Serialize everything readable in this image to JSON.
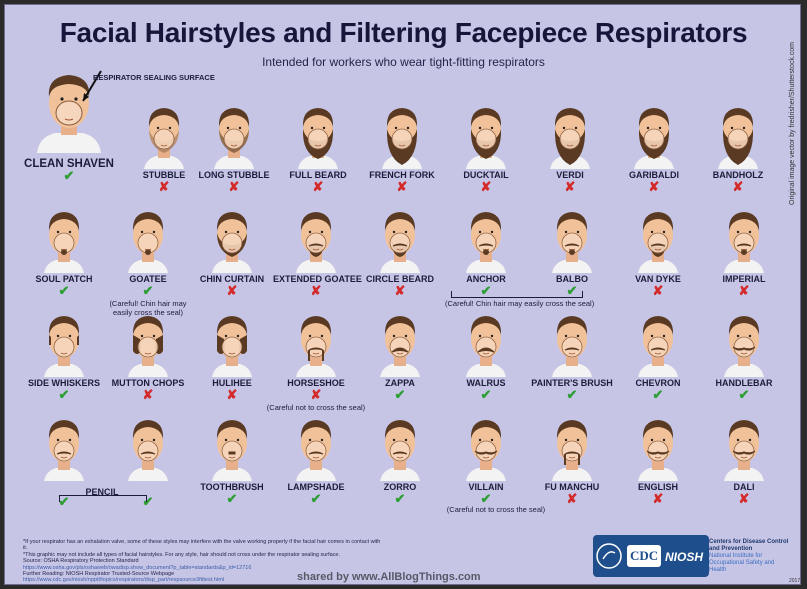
{
  "title": "Facial Hairstyles and Filtering Facepiece Respirators",
  "subtitle": "Intended for workers who wear tight-fitting respirators",
  "sealing_label": "RESPIRATOR SEALING SURFACE",
  "clean_shaven": "CLEAN SHAVEN",
  "colors": {
    "yes": "#2f9e35",
    "no": "#d42a2a",
    "skin": "#f1c29a",
    "hair": "#5a3a22",
    "seal": "#f6d7bd"
  },
  "rows": [
    [
      {
        "label": "STUBBLE",
        "ok": false,
        "style": "stubble"
      },
      {
        "label": "LONG STUBBLE",
        "ok": false,
        "style": "longstubble"
      },
      {
        "label": "FULL BEARD",
        "ok": false,
        "style": "fullbeard"
      },
      {
        "label": "FRENCH FORK",
        "ok": false,
        "style": "frenchfork"
      },
      {
        "label": "DUCKTAIL",
        "ok": false,
        "style": "ducktail"
      },
      {
        "label": "VERDI",
        "ok": false,
        "style": "verdi"
      },
      {
        "label": "GARIBALDI",
        "ok": false,
        "style": "garibaldi"
      },
      {
        "label": "BANDHOLZ",
        "ok": false,
        "style": "bandholz"
      }
    ],
    [
      {
        "label": "SOUL PATCH",
        "ok": true,
        "style": "soulpatch"
      },
      {
        "label": "GOATEE",
        "ok": true,
        "style": "goatee",
        "note": "(Careful! Chin hair may easily cross the seal)"
      },
      {
        "label": "CHIN CURTAIN",
        "ok": false,
        "style": "chincurtain"
      },
      {
        "label": "EXTENDED GOATEE",
        "ok": false,
        "style": "extgoatee"
      },
      {
        "label": "CIRCLE BEARD",
        "ok": false,
        "style": "circlebeard"
      },
      {
        "label": "ANCHOR",
        "ok": true,
        "style": "anchor"
      },
      {
        "label": "BALBO",
        "ok": true,
        "style": "balbo"
      },
      {
        "label": "VAN DYKE",
        "ok": false,
        "style": "vandyke"
      },
      {
        "label": "IMPERIAL",
        "ok": false,
        "style": "imperial"
      }
    ],
    [
      {
        "label": "SIDE WHISKERS",
        "ok": true,
        "style": "sidewhiskers"
      },
      {
        "label": "MUTTON CHOPS",
        "ok": false,
        "style": "muttonchops"
      },
      {
        "label": "HULIHEE",
        "ok": false,
        "style": "hulihee"
      },
      {
        "label": "HORSESHOE",
        "ok": false,
        "style": "horseshoe",
        "note": "(Careful not to cross the seal)"
      },
      {
        "label": "ZAPPA",
        "ok": true,
        "style": "zappa"
      },
      {
        "label": "WALRUS",
        "ok": true,
        "style": "walrus"
      },
      {
        "label": "PAINTER'S BRUSH",
        "ok": true,
        "style": "painters"
      },
      {
        "label": "CHEVRON",
        "ok": true,
        "style": "chevron"
      },
      {
        "label": "HANDLEBAR",
        "ok": true,
        "style": "handlebar"
      }
    ],
    [
      {
        "label": "",
        "ok": true,
        "style": "pencil"
      },
      {
        "label": "",
        "ok": true,
        "style": "pencil2"
      },
      {
        "label": "TOOTHBRUSH",
        "ok": true,
        "style": "toothbrush"
      },
      {
        "label": "LAMPSHADE",
        "ok": true,
        "style": "lampshade"
      },
      {
        "label": "ZORRO",
        "ok": true,
        "style": "zorro"
      },
      {
        "label": "VILLAIN",
        "ok": true,
        "style": "villain"
      },
      {
        "label": "FU MANCHU",
        "ok": false,
        "style": "fumanchu"
      },
      {
        "label": "ENGLISH",
        "ok": false,
        "style": "english"
      },
      {
        "label": "DALI",
        "ok": false,
        "style": "dali"
      }
    ]
  ],
  "anchor_balbo_note": "(Careful! Chin hair may easily cross the seal)",
  "pencil_label": "PENCIL",
  "villain_note": "(Careful not to cross the seal)",
  "footer": {
    "line1": "*If your respirator has an exhalation valve, some of these styles may interfere with the valve working properly if the facial hair comes in contact with it.",
    "line2": "*This graphic may not include all types of facial hairstyles. For any style, hair should not cross under the respirator sealing surface.",
    "line3": "Source: OSHA Respiratory Protection Standard",
    "link1": "https://www.osha.gov/pls/oshaweb/owadisp.show_document?p_table=standards&p_id=12716",
    "line4": "Further Reading: NIOSH Respirator Trusted-Source Webpage",
    "link2": "https://www.cdc.gov/niosh/npptl/topics/respirators/disp_part/respsource3fittest.html"
  },
  "watermark": "shared by www.AllBlogThings.com",
  "cdc": "CDC",
  "niosh": "NIOSH",
  "cdc_text1": "Centers for Disease Control and Prevention",
  "cdc_text2": "National Institute for Occupational Safety and Health",
  "year": "2017",
  "credit": "Original image vector by fredrisher/Shutterstock.com"
}
